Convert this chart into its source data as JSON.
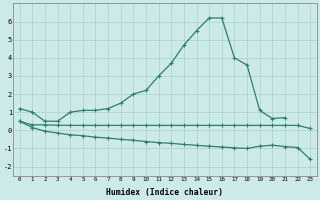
{
  "xlabel": "Humidex (Indice chaleur)",
  "x": [
    0,
    1,
    2,
    3,
    4,
    5,
    6,
    7,
    8,
    9,
    10,
    11,
    12,
    13,
    14,
    15,
    16,
    17,
    18,
    19,
    20,
    21,
    22,
    23
  ],
  "line1": [
    1.2,
    1.0,
    0.5,
    0.5,
    1.0,
    1.1,
    1.1,
    1.2,
    1.5,
    2.0,
    2.2,
    3.0,
    3.7,
    4.7,
    5.5,
    6.2,
    6.2,
    4.0,
    3.6,
    1.1,
    0.65,
    0.7,
    null,
    null
  ],
  "line2": [
    0.5,
    0.3,
    0.3,
    0.28,
    0.27,
    0.27,
    0.27,
    0.27,
    0.27,
    0.27,
    0.27,
    0.27,
    0.27,
    0.27,
    0.27,
    0.27,
    0.27,
    0.27,
    0.27,
    0.27,
    0.27,
    0.27,
    0.27,
    0.1
  ],
  "line3": [
    0.5,
    0.15,
    -0.05,
    -0.15,
    -0.25,
    -0.3,
    -0.38,
    -0.43,
    -0.5,
    -0.55,
    -0.62,
    -0.68,
    -0.72,
    -0.78,
    -0.83,
    -0.88,
    -0.92,
    -0.97,
    -1.0,
    -0.88,
    -0.82,
    -0.9,
    -0.95,
    -1.6
  ],
  "line_color": "#2e7d6e",
  "bg_color": "#cceaea",
  "grid_color": "#aacece",
  "ylim": [
    -2.5,
    7.0
  ],
  "xlim": [
    -0.5,
    23.5
  ],
  "yticks": [
    -2,
    -1,
    0,
    1,
    2,
    3,
    4,
    5,
    6
  ],
  "xticks": [
    0,
    1,
    2,
    3,
    4,
    5,
    6,
    7,
    8,
    9,
    10,
    11,
    12,
    13,
    14,
    15,
    16,
    17,
    18,
    19,
    20,
    21,
    22,
    23
  ]
}
